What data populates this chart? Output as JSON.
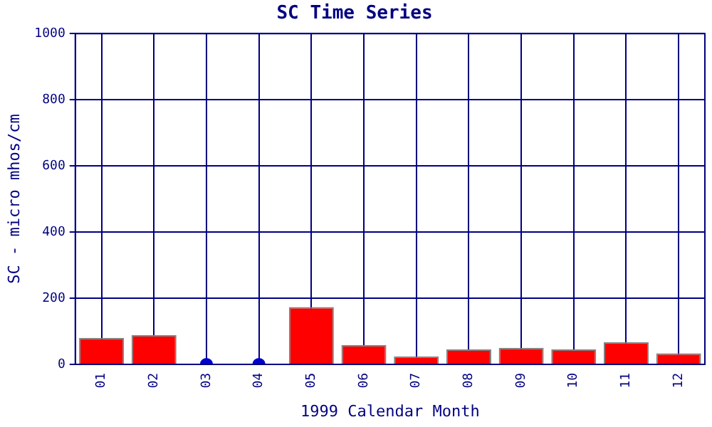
{
  "chart_data": {
    "type": "bar",
    "title": "SC Time Series",
    "xlabel": "1999 Calendar Month",
    "ylabel": "SC - micro mhos/cm",
    "categories": [
      "01",
      "02",
      "03",
      "04",
      "05",
      "06",
      "07",
      "08",
      "09",
      "10",
      "11",
      "12"
    ],
    "series": [
      {
        "color": "#ff0000",
        "values": [
          80,
          88,
          null,
          null,
          173,
          58,
          24,
          45,
          50,
          45,
          67,
          33
        ]
      },
      {
        "type": "scatter",
        "color": "#0000cc",
        "x": [
          "03",
          "04"
        ],
        "values": [
          0,
          0
        ],
        "marker": "circle"
      }
    ],
    "ylim": [
      0,
      1000
    ],
    "yticks": [
      0,
      200,
      400,
      600,
      800,
      1000
    ],
    "grid": true,
    "legend": false
  }
}
